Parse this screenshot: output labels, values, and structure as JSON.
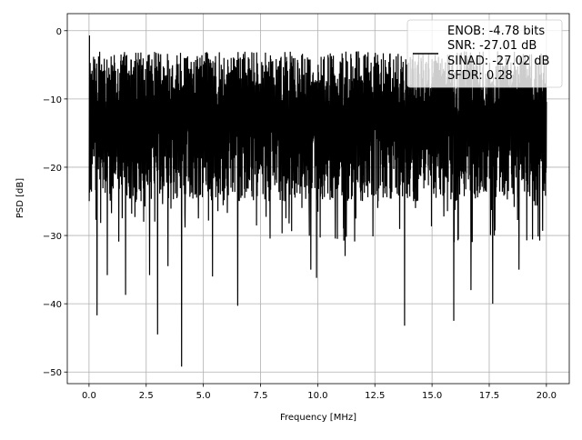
{
  "chart_data": {
    "type": "line",
    "title": "",
    "xlabel": "Frequency [MHz]",
    "ylabel": "PSD [dB]",
    "xlim": [
      -0.95,
      21.0
    ],
    "ylim": [
      -51.7,
      2.5
    ],
    "xticks": [
      0.0,
      2.5,
      5.0,
      7.5,
      10.0,
      12.5,
      15.0,
      17.5,
      20.0
    ],
    "xtick_labels": [
      "0.0",
      "2.5",
      "5.0",
      "7.5",
      "10.0",
      "12.5",
      "15.0",
      "17.5",
      "20.0"
    ],
    "yticks": [
      0,
      -10,
      -20,
      -30,
      -40,
      -50
    ],
    "ytick_labels": [
      "0",
      "−10",
      "−20",
      "−30",
      "−40",
      "−50"
    ],
    "grid": true,
    "line_color": "#000000",
    "series": [
      {
        "x_range": [
          0,
          20
        ],
        "typical_band": [
          -25,
          -3
        ],
        "peak": {
          "x": 0.02,
          "y": -0.7
        },
        "notable_dips": [
          {
            "x": 0.35,
            "y": -41.7
          },
          {
            "x": 0.8,
            "y": -35.8
          },
          {
            "x": 1.6,
            "y": -38.7
          },
          {
            "x": 2.65,
            "y": -35.8
          },
          {
            "x": 3.0,
            "y": -44.5
          },
          {
            "x": 3.45,
            "y": -34.5
          },
          {
            "x": 4.05,
            "y": -49.2
          },
          {
            "x": 5.4,
            "y": -36.0
          },
          {
            "x": 6.5,
            "y": -40.3
          },
          {
            "x": 9.7,
            "y": -35.0
          },
          {
            "x": 9.95,
            "y": -36.2
          },
          {
            "x": 11.2,
            "y": -33.0
          },
          {
            "x": 13.8,
            "y": -43.2
          },
          {
            "x": 15.95,
            "y": -42.5
          },
          {
            "x": 16.7,
            "y": -38.0
          },
          {
            "x": 17.65,
            "y": -40.0
          },
          {
            "x": 18.8,
            "y": -35.0
          }
        ]
      }
    ],
    "legend": {
      "placement": "upper-right",
      "entries": [
        "ENOB: -4.78 bits",
        "SNR: -27.01 dB",
        "SINAD: -27.02 dB",
        "SFDR: 0.28"
      ]
    }
  }
}
